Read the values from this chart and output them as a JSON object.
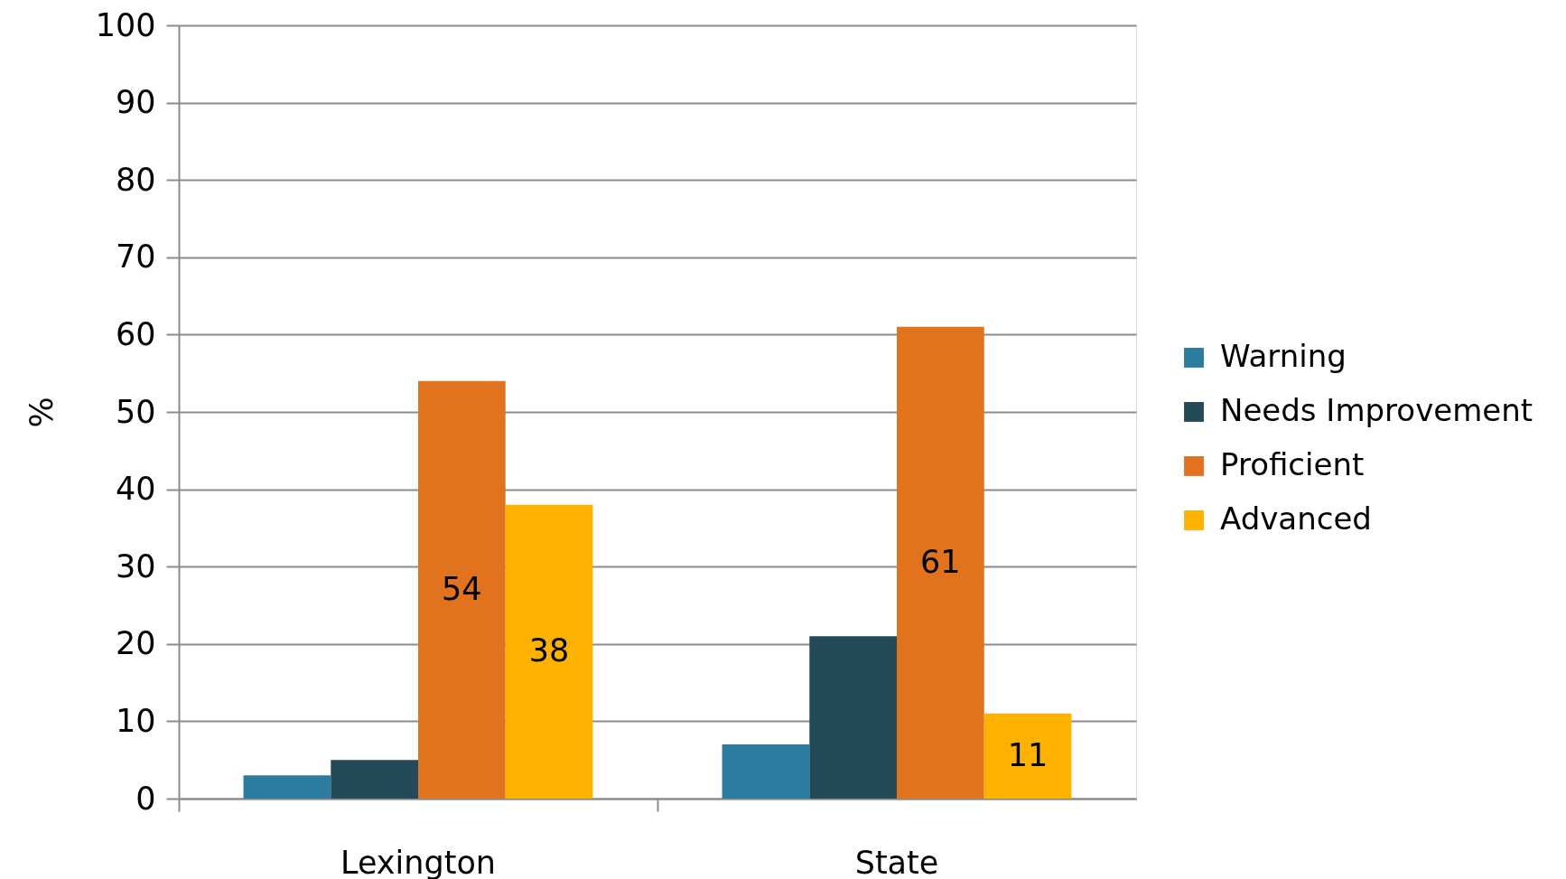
{
  "chart_data": {
    "type": "bar",
    "ylabel": "%",
    "categories": [
      "Lexington",
      "State"
    ],
    "series": [
      {
        "name": "Warning",
        "color": "#2c7ca0",
        "values": [
          3,
          7
        ],
        "value_labels": [
          null,
          null
        ]
      },
      {
        "name": "Needs Improvement",
        "color": "#244a59",
        "values": [
          5,
          21
        ],
        "value_labels": [
          null,
          null
        ]
      },
      {
        "name": "Proficient",
        "color": "#e1731f",
        "values": [
          54,
          61
        ],
        "value_labels": [
          "54",
          "61"
        ]
      },
      {
        "name": "Advanced",
        "color": "#fdb200",
        "values": [
          38,
          11
        ],
        "value_labels": [
          "38",
          "11"
        ]
      }
    ],
    "ylim": [
      0,
      100
    ],
    "yticks": [
      0,
      10,
      20,
      30,
      40,
      50,
      60,
      70,
      80,
      90,
      100
    ],
    "grid": "y",
    "legend": "right"
  }
}
